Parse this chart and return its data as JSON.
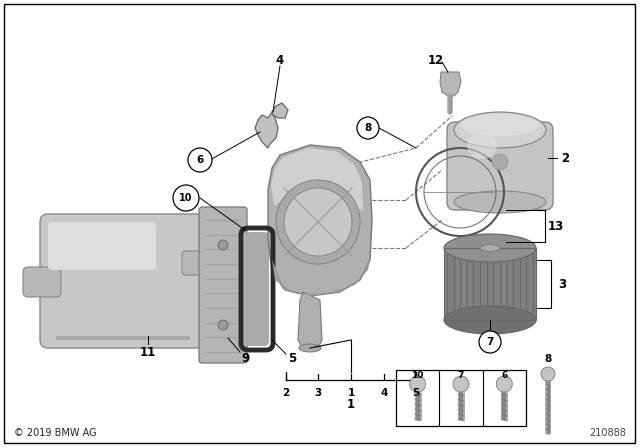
{
  "bg_color": "#ffffff",
  "copyright": "© 2019 BMW AG",
  "part_number": "210888",
  "fig_width": 6.4,
  "fig_height": 4.48,
  "dpi": 100
}
